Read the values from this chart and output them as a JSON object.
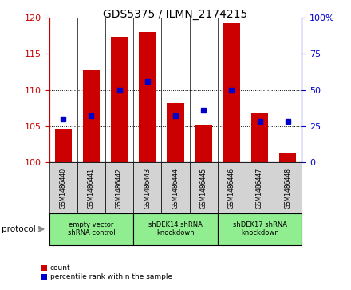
{
  "title": "GDS5375 / ILMN_2174215",
  "samples": [
    "GSM1486440",
    "GSM1486441",
    "GSM1486442",
    "GSM1486443",
    "GSM1486444",
    "GSM1486445",
    "GSM1486446",
    "GSM1486447",
    "GSM1486448"
  ],
  "count_values": [
    104.7,
    112.7,
    117.3,
    118.0,
    108.2,
    105.1,
    119.2,
    106.7,
    101.2
  ],
  "percentile_values": [
    30,
    32,
    50,
    56,
    32,
    36,
    50,
    28,
    28
  ],
  "ylim_left": [
    100,
    120
  ],
  "ylim_right": [
    0,
    100
  ],
  "yticks_left": [
    100,
    105,
    110,
    115,
    120
  ],
  "yticks_right": [
    0,
    25,
    50,
    75,
    100
  ],
  "bar_color": "#cc0000",
  "marker_color": "#0000cc",
  "bar_width": 0.6,
  "groups": [
    {
      "label": "empty vector\nshRNA control",
      "start": 0,
      "end": 3,
      "color": "#90ee90"
    },
    {
      "label": "shDEK14 shRNA\nknockdown",
      "start": 3,
      "end": 6,
      "color": "#90ee90"
    },
    {
      "label": "shDEK17 shRNA\nknockdown",
      "start": 6,
      "end": 9,
      "color": "#90ee90"
    }
  ],
  "legend_count_label": "count",
  "legend_pct_label": "percentile rank within the sample",
  "bg_color": "#ffffff"
}
